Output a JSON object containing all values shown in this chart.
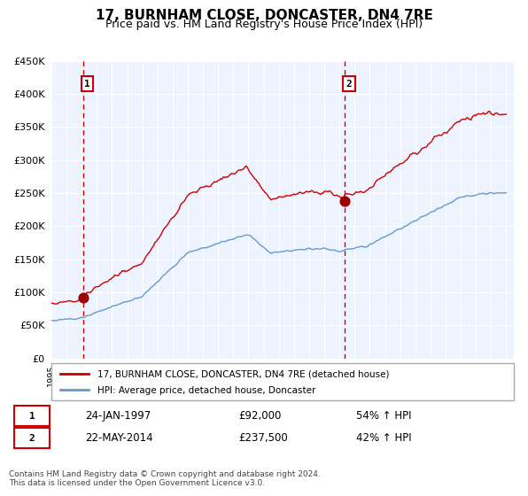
{
  "title": "17, BURNHAM CLOSE, DONCASTER, DN4 7RE",
  "subtitle": "Price paid vs. HM Land Registry's House Price Index (HPI)",
  "legend_line1": "17, BURNHAM CLOSE, DONCASTER, DN4 7RE (detached house)",
  "legend_line2": "HPI: Average price, detached house, Doncaster",
  "transaction1_date": "24-JAN-1997",
  "transaction1_price": 92000,
  "transaction1_label": "54% ↑ HPI",
  "transaction2_date": "22-MAY-2014",
  "transaction2_price": 237500,
  "transaction2_label": "42% ↑ HPI",
  "footer": "Contains HM Land Registry data © Crown copyright and database right 2024.\nThis data is licensed under the Open Government Licence v3.0.",
  "red_color": "#cc0000",
  "blue_color": "#6699cc",
  "bg_color": "#ddeeff",
  "plot_bg": "#eef4ff",
  "grid_color": "#ffffff",
  "marker_color": "#990000",
  "dashed_color": "#cc0000",
  "ylim": [
    0,
    450000
  ],
  "yticks": [
    0,
    50000,
    100000,
    150000,
    200000,
    250000,
    300000,
    350000,
    400000,
    450000
  ],
  "xstart_year": 1995,
  "xend_year": 2025
}
